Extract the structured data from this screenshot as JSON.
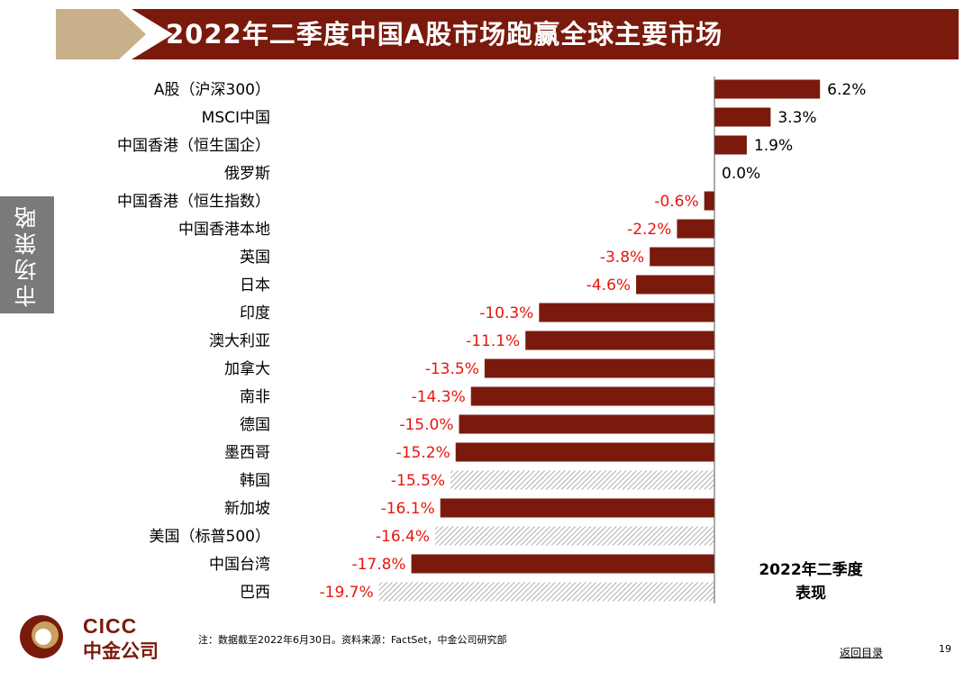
{
  "title": "2022年二季度中国A股市场跑赢全球主要市场",
  "side_tab": "市场策略",
  "caption": {
    "line1": "2022年二季度",
    "line2": "表现"
  },
  "footer": {
    "logo_en": "CICC",
    "logo_cn": "中金公司",
    "note": "注：数据截至2022年6月30日。资料来源：FactSet，中金公司研究部",
    "back_link": "返回目录",
    "page": "19"
  },
  "colors": {
    "bar": "#7a1a0c",
    "negative_label": "#e8150c",
    "positive_label": "#000000",
    "hatch": "#9a9a9a",
    "title_bar": "#7a1a0c",
    "title_accent": "#c8b08a"
  },
  "chart_data": {
    "type": "bar",
    "orientation": "horizontal",
    "title": "2022年二季度表现",
    "unit": "%",
    "categories": [
      "A股（沪深300）",
      "MSCI中国",
      "中国香港（恒生国企）",
      "俄罗斯",
      "中国香港（恒生指数）",
      "中国香港本地",
      "英国",
      "日本",
      "印度",
      "澳大利亚",
      "加拿大",
      "南非",
      "德国",
      "墨西哥",
      "韩国",
      "新加坡",
      "美国（标普500）",
      "中国台湾",
      "巴西"
    ],
    "values": [
      6.2,
      3.3,
      1.9,
      0.0,
      -0.6,
      -2.2,
      -3.8,
      -4.6,
      -10.3,
      -11.1,
      -13.5,
      -14.3,
      -15.0,
      -15.2,
      -15.5,
      -16.1,
      -16.4,
      -17.8,
      -19.7
    ],
    "labels": [
      "6.2%",
      "3.3%",
      "1.9%",
      "0.0%",
      "-0.6%",
      "-2.2%",
      "-3.8%",
      "-4.6%",
      "-10.3%",
      "-11.1%",
      "-13.5%",
      "-14.3%",
      "-15.0%",
      "-15.2%",
      "-15.5%",
      "-16.1%",
      "-16.4%",
      "-17.8%",
      "-19.7%"
    ],
    "hatched": [
      false,
      false,
      false,
      false,
      false,
      false,
      false,
      false,
      false,
      false,
      false,
      false,
      false,
      false,
      true,
      false,
      true,
      false,
      true
    ],
    "xlim": [
      -20,
      8
    ]
  }
}
